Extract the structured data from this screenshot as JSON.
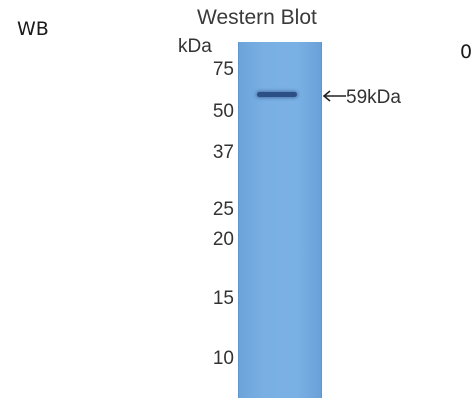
{
  "side_label": "WB",
  "corner_label": "0",
  "blot": {
    "title": "Western Blot",
    "unit": "kDa",
    "markers": [
      {
        "label": "75",
        "kda": 75
      },
      {
        "label": "50",
        "kda": 50
      },
      {
        "label": "37",
        "kda": 37
      },
      {
        "label": "25",
        "kda": 25
      },
      {
        "label": "20",
        "kda": 20
      },
      {
        "label": "15",
        "kda": 15
      },
      {
        "label": "10",
        "kda": 10
      }
    ],
    "target_label": "59kDa",
    "arrow_icon": "left-arrow-icon",
    "lane_color": "#78aee2",
    "band_color": "#2c4f86"
  }
}
